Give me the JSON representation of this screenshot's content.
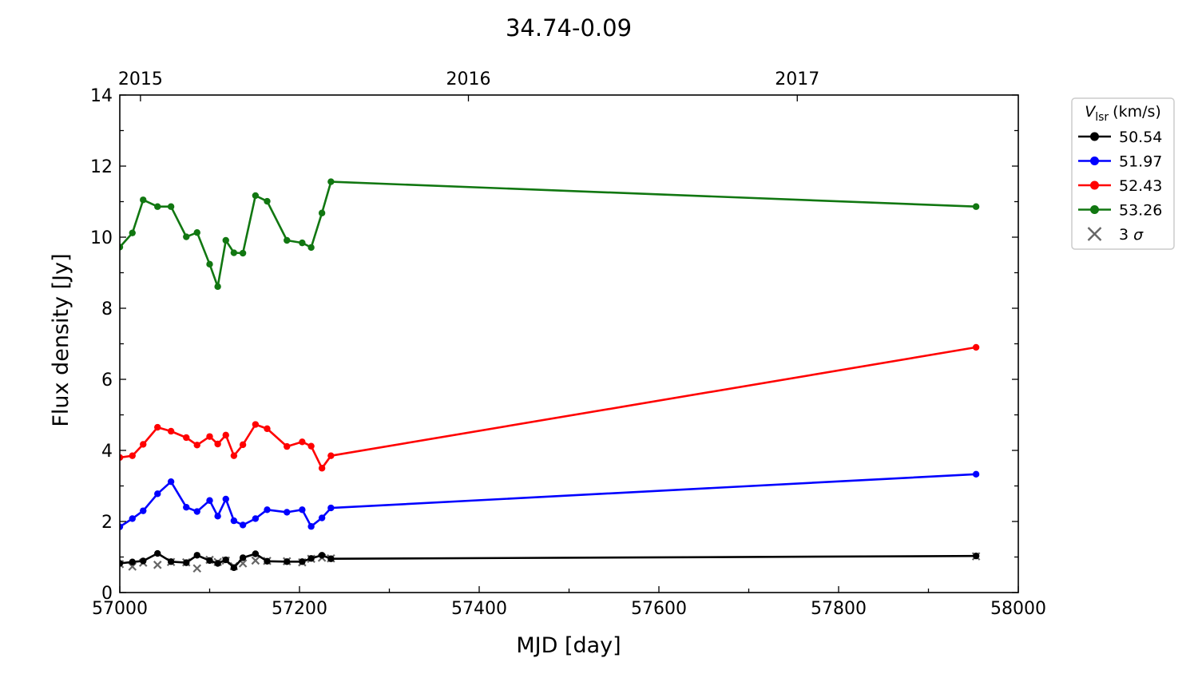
{
  "chart_data": {
    "type": "line",
    "title": "34.74-0.09",
    "xlabel": "MJD [day]",
    "ylabel": "Flux density [Jy]",
    "xlim": [
      57000,
      58000
    ],
    "ylim": [
      0,
      14
    ],
    "x_ticks": [
      57000,
      57200,
      57400,
      57600,
      57800,
      58000
    ],
    "y_ticks": [
      0,
      2,
      4,
      6,
      8,
      10,
      12,
      14
    ],
    "top_axis": {
      "ticks": [
        {
          "label": "2015",
          "mjd": 57023
        },
        {
          "label": "2016",
          "mjd": 57388
        },
        {
          "label": "2017",
          "mjd": 57754
        }
      ]
    },
    "grid": false,
    "legend": {
      "placement": "outside-right-top",
      "title_main": "V",
      "title_sub": "lsr",
      "title_unit": "(km/s)",
      "sigma_label": "3 σ"
    },
    "x": [
      57000,
      57014,
      57026,
      57042,
      57057,
      57074,
      57086,
      57100,
      57109,
      57118,
      57127,
      57137,
      57151,
      57164,
      57186,
      57203,
      57213,
      57225,
      57235,
      57953
    ],
    "series": [
      {
        "name": "50.54",
        "color": "#000000",
        "values": [
          0.82,
          0.86,
          0.89,
          1.1,
          0.87,
          0.84,
          1.05,
          0.9,
          0.82,
          0.92,
          0.7,
          0.98,
          1.09,
          0.88,
          0.87,
          0.87,
          0.96,
          1.05,
          0.95,
          1.03
        ]
      },
      {
        "name": "51.97",
        "color": "#0000ff",
        "values": [
          1.85,
          2.08,
          2.3,
          2.78,
          3.12,
          2.4,
          2.28,
          2.59,
          2.15,
          2.63,
          2.02,
          1.9,
          2.08,
          2.33,
          2.26,
          2.33,
          1.86,
          2.1,
          2.38,
          3.33
        ]
      },
      {
        "name": "52.43",
        "color": "#ff0000",
        "values": [
          3.8,
          3.85,
          4.17,
          4.65,
          4.54,
          4.36,
          4.15,
          4.39,
          4.18,
          4.43,
          3.85,
          4.16,
          4.73,
          4.61,
          4.11,
          4.24,
          4.12,
          3.5,
          3.85,
          6.9
        ]
      },
      {
        "name": "53.26",
        "color": "#117711",
        "values": [
          9.72,
          10.12,
          11.05,
          10.86,
          10.86,
          10.01,
          10.13,
          9.24,
          8.61,
          9.91,
          9.56,
          9.55,
          11.17,
          11.01,
          9.91,
          9.84,
          9.71,
          10.68,
          11.56,
          10.86
        ]
      }
    ],
    "three_sigma": {
      "name": "3 σ",
      "color": "#666666",
      "points": [
        {
          "x": 57000,
          "y": 0.8
        },
        {
          "x": 57014,
          "y": 0.73
        },
        {
          "x": 57026,
          "y": 0.84
        },
        {
          "x": 57042,
          "y": 0.78
        },
        {
          "x": 57057,
          "y": 0.86
        },
        {
          "x": 57074,
          "y": 0.85
        },
        {
          "x": 57086,
          "y": 0.68
        },
        {
          "x": 57100,
          "y": 0.92
        },
        {
          "x": 57109,
          "y": 0.86
        },
        {
          "x": 57118,
          "y": 0.9
        },
        {
          "x": 57127,
          "y": 0.74
        },
        {
          "x": 57137,
          "y": 0.82
        },
        {
          "x": 57151,
          "y": 0.9
        },
        {
          "x": 57164,
          "y": 0.89
        },
        {
          "x": 57186,
          "y": 0.88
        },
        {
          "x": 57203,
          "y": 0.85
        },
        {
          "x": 57213,
          "y": 0.95
        },
        {
          "x": 57225,
          "y": 0.98
        },
        {
          "x": 57235,
          "y": 0.96
        },
        {
          "x": 57953,
          "y": 1.02
        }
      ]
    }
  }
}
